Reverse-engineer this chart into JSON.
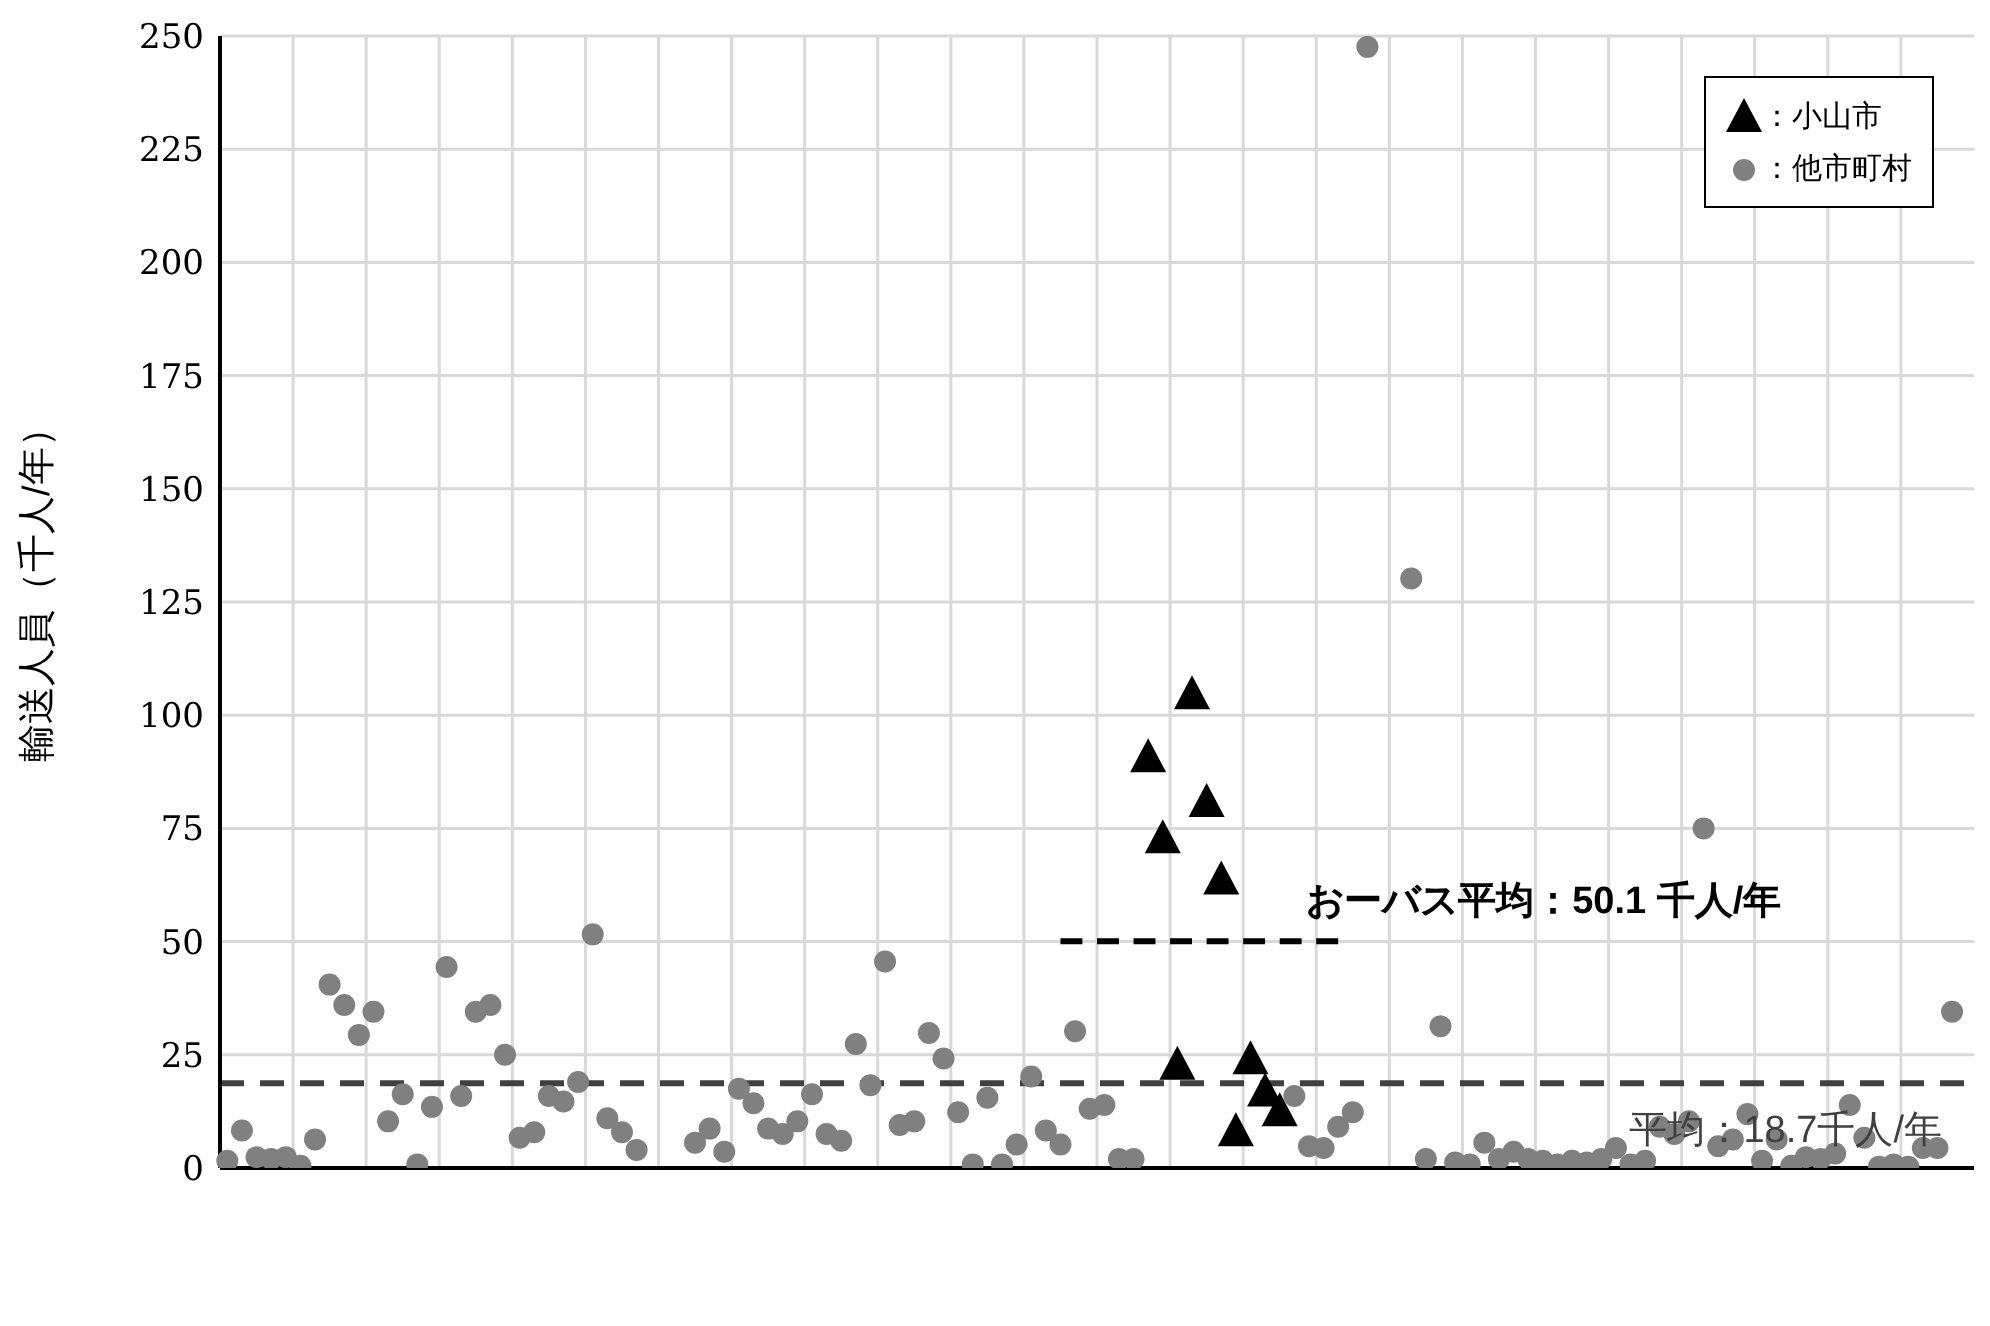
{
  "chart_data": {
    "type": "scatter",
    "ylabel": "輸送人員（千人/年）",
    "categories": [
      null,
      null,
      null,
      null,
      null,
      null,
      null,
      null,
      null,
      null,
      null,
      null,
      null,
      null,
      null,
      null,
      null,
      null,
      null,
      null,
      null,
      null,
      null,
      null,
      null,
      null,
      null,
      null,
      null,
      null,
      null,
      null,
      null,
      null,
      null,
      null,
      null,
      null,
      null,
      null,
      null,
      null,
      null,
      null,
      null,
      null,
      null,
      null,
      null,
      null,
      null,
      null,
      null,
      null,
      null,
      null,
      null,
      null,
      null,
      null,
      null,
      null,
      null,
      null,
      null,
      null,
      null,
      null,
      null,
      null,
      null,
      null,
      null,
      null,
      null,
      null,
      null,
      null,
      null,
      null,
      null,
      null,
      null,
      null,
      null,
      null,
      null,
      null,
      null,
      null,
      null,
      null,
      null,
      null,
      null,
      null,
      null,
      null,
      null,
      null,
      null,
      null,
      null,
      null,
      null,
      null,
      null,
      null,
      null,
      null,
      null,
      null,
      null,
      null,
      null,
      null,
      null,
      null,
      null,
      null
    ],
    "ylim": [
      0,
      250
    ],
    "yticks": [
      0,
      25,
      50,
      75,
      100,
      125,
      150,
      175,
      200,
      225,
      250
    ],
    "grid": true,
    "legend": "top right",
    "series": [
      {
        "name": "：小山市",
        "color": "#000000",
        "marker": "triangle",
        "values": [
          null,
          null,
          null,
          null,
          null,
          null,
          null,
          null,
          null,
          null,
          null,
          null,
          null,
          null,
          null,
          null,
          null,
          null,
          null,
          null,
          null,
          null,
          null,
          null,
          null,
          null,
          null,
          null,
          null,
          null,
          null,
          null,
          null,
          null,
          null,
          null,
          null,
          null,
          null,
          null,
          null,
          null,
          null,
          null,
          null,
          null,
          null,
          null,
          null,
          null,
          null,
          null,
          null,
          null,
          null,
          null,
          null,
          null,
          null,
          null,
          null,
          null,
          null,
          90.5,
          72.6,
          22.6,
          104.4,
          80.6,
          63.5,
          7.9,
          23.8,
          16.7,
          12.3,
          null,
          null,
          null,
          null,
          null,
          null,
          null,
          null,
          null,
          null,
          null,
          null,
          null,
          null,
          null,
          null,
          null,
          null,
          null,
          null,
          null,
          null,
          null,
          null,
          null,
          null,
          null,
          null,
          null,
          null,
          null,
          null,
          null,
          null,
          null,
          null,
          null,
          null,
          null,
          null,
          null,
          null,
          null,
          null,
          null,
          null,
          null
        ]
      },
      {
        "name": "：他市町村",
        "color": "#808080",
        "marker": "circle",
        "values": [
          1.6,
          8.3,
          2.4,
          2,
          2.4,
          0.5,
          6.3,
          40.5,
          36,
          29.4,
          34.5,
          10.3,
          16.3,
          0.8,
          13.5,
          44.4,
          15.9,
          34.5,
          36,
          25,
          6.7,
          7.9,
          15.9,
          14.7,
          19,
          51.6,
          11,
          7.9,
          4,
          null,
          null,
          null,
          5.6,
          8.7,
          3.6,
          17.5,
          14.3,
          8.7,
          7.5,
          10.3,
          16.3,
          7.5,
          6,
          27.4,
          18.3,
          45.6,
          9.5,
          10.3,
          29.8,
          24.2,
          12.3,
          0.8,
          15.5,
          0.8,
          5.2,
          20.2,
          8.3,
          5.2,
          30.2,
          13.1,
          13.9,
          2,
          2,
          null,
          null,
          null,
          null,
          null,
          null,
          null,
          null,
          null,
          null,
          15.9,
          4.8,
          4.4,
          9.1,
          12.3,
          247.6,
          null,
          null,
          130.2,
          2,
          31.3,
          1.2,
          0.8,
          5.6,
          2,
          3.6,
          2,
          1.6,
          0.8,
          1.6,
          1.2,
          2,
          4.4,
          0.8,
          1.6,
          9.1,
          7.5,
          10.3,
          75,
          4.8,
          6.3,
          11.9,
          1.6,
          6.3,
          0.5,
          2.4,
          2,
          3.2,
          13.9,
          6.7,
          0.3,
          0.8,
          0.3,
          4.4,
          4.4,
          34.5,
          null
        ]
      },
      {
        "type": "line",
        "color": "#000000",
        "line_style": "dashed",
        "marker": "none",
        "values": [
          null,
          null,
          null,
          null,
          null,
          null,
          null,
          null,
          null,
          null,
          null,
          null,
          null,
          null,
          null,
          null,
          null,
          null,
          null,
          null,
          null,
          null,
          null,
          null,
          null,
          null,
          null,
          null,
          null,
          null,
          null,
          null,
          null,
          null,
          null,
          null,
          null,
          null,
          null,
          null,
          null,
          null,
          null,
          null,
          null,
          null,
          null,
          null,
          null,
          null,
          null,
          null,
          null,
          null,
          null,
          null,
          null,
          50.1,
          50.1,
          50.1,
          50.1,
          50.1,
          50.1,
          50.1,
          50.1,
          50.1,
          50.1,
          50.1,
          50.1,
          50.1,
          50.1,
          50.1,
          50.1,
          50.1,
          50.1,
          50.1,
          50.1,
          null,
          null,
          null,
          null,
          null,
          null,
          null,
          null,
          null,
          null,
          null,
          null,
          null,
          null,
          null,
          null,
          null,
          null,
          null,
          null,
          null,
          null,
          null,
          null,
          null,
          null,
          null,
          null,
          null,
          null,
          null,
          null,
          null,
          null,
          null,
          null,
          null,
          null,
          null,
          null,
          null,
          null,
          null
        ]
      }
    ],
    "ref_lines": [
      {
        "axis": "y",
        "value": 18.7,
        "label": "平均：18.7千人/年",
        "color": "#404040",
        "line_style": "dashed"
      }
    ],
    "annotations": [
      "おーバス平均：50.1 千人/年"
    ]
  }
}
